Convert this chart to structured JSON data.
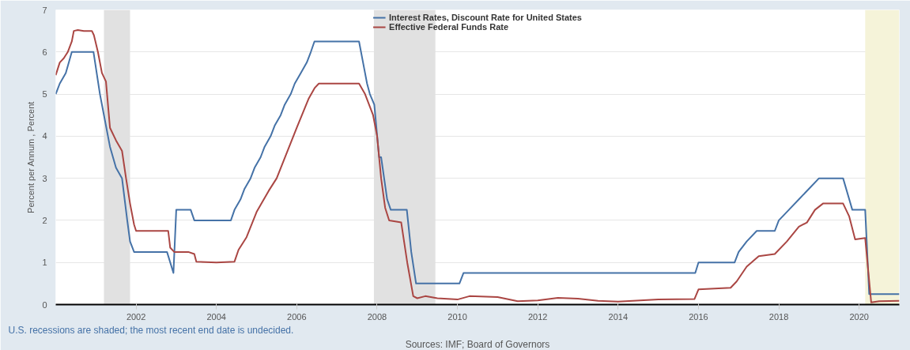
{
  "chart_data": {
    "type": "line",
    "ylabel": "Percent per Annum , Percent",
    "xlim": [
      2000,
      2021
    ],
    "ylim": [
      0,
      7
    ],
    "xticks": [
      2002,
      2004,
      2006,
      2008,
      2010,
      2012,
      2014,
      2016,
      2018,
      2020
    ],
    "yticks": [
      0,
      1,
      2,
      3,
      4,
      5,
      6,
      7
    ],
    "grid": "y",
    "legend": "top",
    "line_style": "solid",
    "marker": "none",
    "annotations": [
      "U.S. recessions are shaded; the most recent end date is undecided.",
      "Sources: IMF; Board of Governors"
    ],
    "bands": [
      {
        "axis": "x",
        "from": 2001.2,
        "to": 2001.85,
        "color": "#e1e1e1"
      },
      {
        "axis": "x",
        "from": 2007.92,
        "to": 2009.45,
        "color": "#e1e1e1"
      },
      {
        "axis": "x",
        "from": 2020.15,
        "to": 2021,
        "color": "#f5f3d9"
      }
    ],
    "series": [
      {
        "name": "Interest Rates, Discount Rate for United States",
        "color": "#4572a7",
        "x": [
          2000,
          2000.1,
          2000.25,
          2000.4,
          2000.94,
          2001.1,
          2001.2,
          2001.35,
          2001.5,
          2001.65,
          2001.78,
          2001.85,
          2001.95,
          2002.77,
          2002.93,
          2003.0,
          2003.36,
          2003.45,
          2004.36,
          2004.45,
          2004.6,
          2004.7,
          2004.85,
          2004.95,
          2005.1,
          2005.2,
          2005.35,
          2005.45,
          2005.6,
          2005.7,
          2005.85,
          2005.95,
          2006.1,
          2006.25,
          2006.35,
          2006.44,
          2007.55,
          2007.65,
          2007.75,
          2007.82,
          2007.93,
          2008.05,
          2008.1,
          2008.25,
          2008.34,
          2008.74,
          2008.85,
          2008.97,
          2010.05,
          2010.15,
          2015.92,
          2016.0,
          2016.9,
          2017.0,
          2017.2,
          2017.45,
          2017.9,
          2018.0,
          2018.25,
          2018.5,
          2018.75,
          2019.0,
          2019.6,
          2019.83,
          2020.15,
          2020.25,
          2021.0
        ],
        "values": [
          5.0,
          5.25,
          5.5,
          6.0,
          6.0,
          5.0,
          4.5,
          3.75,
          3.25,
          3.0,
          2.0,
          1.5,
          1.25,
          1.25,
          0.75,
          2.25,
          2.25,
          2.0,
          2.0,
          2.25,
          2.5,
          2.75,
          3.0,
          3.25,
          3.5,
          3.75,
          4.0,
          4.25,
          4.5,
          4.75,
          5.0,
          5.25,
          5.5,
          5.75,
          6.0,
          6.25,
          6.25,
          5.75,
          5.25,
          5.0,
          4.75,
          3.5,
          3.5,
          2.5,
          2.25,
          2.25,
          1.25,
          0.5,
          0.5,
          0.75,
          0.75,
          1.0,
          1.0,
          1.25,
          1.5,
          1.75,
          1.75,
          2.0,
          2.25,
          2.5,
          2.75,
          3.0,
          3.0,
          2.25,
          2.25,
          0.25,
          0.25
        ]
      },
      {
        "name": "Effective Federal Funds Rate",
        "color": "#aa4643",
        "x": [
          2000,
          2000.1,
          2000.2,
          2000.3,
          2000.4,
          2000.45,
          2000.55,
          2000.7,
          2000.9,
          2000.95,
          2001.05,
          2001.15,
          2001.25,
          2001.35,
          2001.5,
          2001.65,
          2001.75,
          2001.85,
          2001.95,
          2002.0,
          2002.5,
          2002.8,
          2002.85,
          2002.95,
          2003.3,
          2003.45,
          2003.5,
          2004.0,
          2004.45,
          2004.55,
          2004.75,
          2005.0,
          2005.3,
          2005.5,
          2005.75,
          2006.0,
          2006.3,
          2006.45,
          2006.55,
          2007.55,
          2007.7,
          2007.9,
          2008.0,
          2008.1,
          2008.2,
          2008.3,
          2008.6,
          2008.75,
          2008.9,
          2009.0,
          2009.2,
          2009.5,
          2010.0,
          2010.3,
          2011.0,
          2011.5,
          2012.0,
          2012.5,
          2013.0,
          2013.5,
          2014.0,
          2015.0,
          2015.9,
          2016.0,
          2016.8,
          2016.95,
          2017.2,
          2017.5,
          2017.9,
          2018.2,
          2018.5,
          2018.7,
          2018.9,
          2019.1,
          2019.6,
          2019.75,
          2019.9,
          2020.15,
          2020.3,
          2020.5,
          2021.0
        ],
        "values": [
          5.45,
          5.75,
          5.85,
          6.0,
          6.25,
          6.5,
          6.52,
          6.5,
          6.5,
          6.4,
          6.0,
          5.5,
          5.3,
          4.2,
          3.9,
          3.65,
          3.0,
          2.4,
          1.9,
          1.75,
          1.75,
          1.75,
          1.35,
          1.25,
          1.25,
          1.2,
          1.02,
          1.0,
          1.02,
          1.3,
          1.6,
          2.2,
          2.7,
          3.0,
          3.6,
          4.2,
          4.9,
          5.15,
          5.25,
          5.25,
          5.0,
          4.5,
          4.0,
          3.0,
          2.3,
          2.0,
          1.95,
          1.0,
          0.2,
          0.15,
          0.2,
          0.15,
          0.12,
          0.2,
          0.18,
          0.08,
          0.1,
          0.16,
          0.14,
          0.09,
          0.07,
          0.12,
          0.13,
          0.36,
          0.4,
          0.55,
          0.9,
          1.15,
          1.2,
          1.5,
          1.85,
          1.95,
          2.25,
          2.4,
          2.4,
          2.1,
          1.55,
          1.58,
          0.05,
          0.08,
          0.09
        ]
      }
    ]
  }
}
